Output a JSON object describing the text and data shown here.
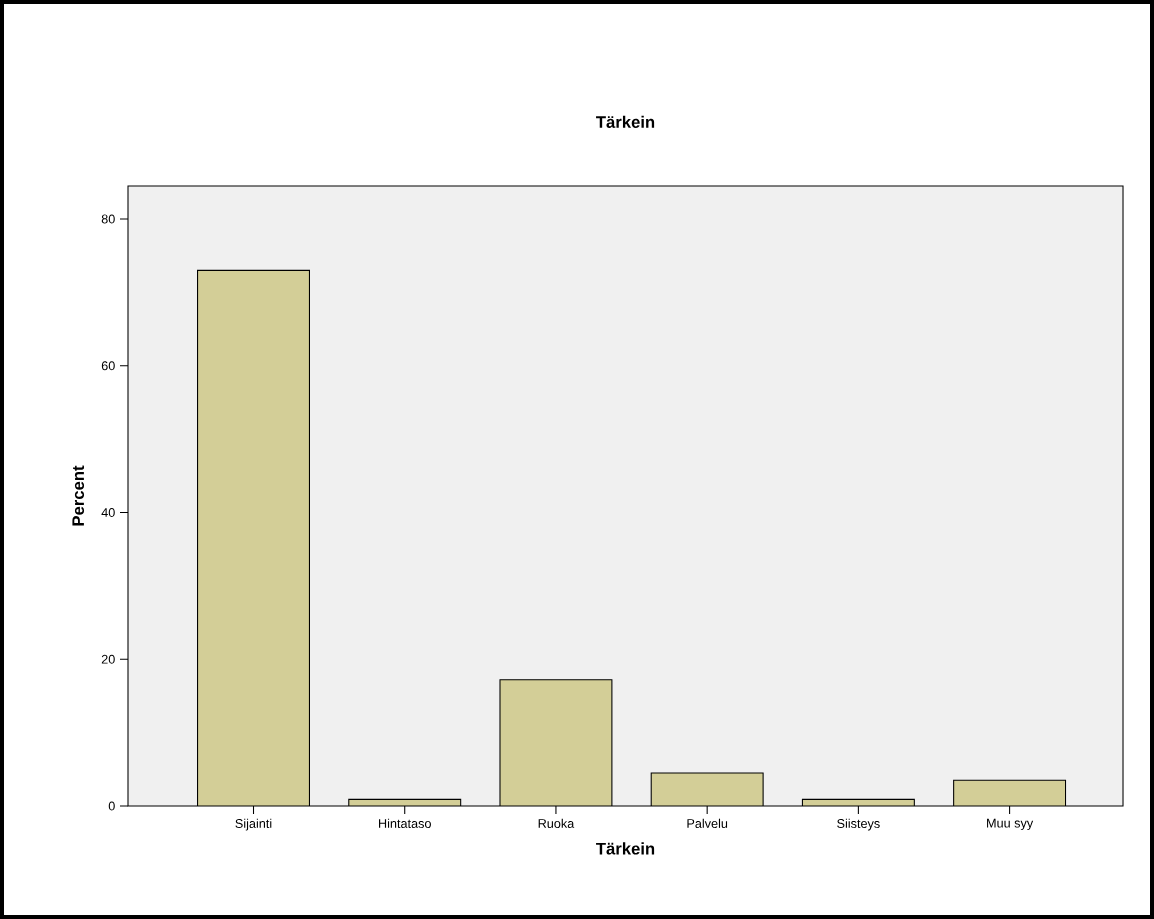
{
  "chart_data": {
    "type": "bar",
    "title": "Tärkein",
    "xlabel": "Tärkein",
    "ylabel": "Percent",
    "categories": [
      "Sijainti",
      "Hintataso",
      "Ruoka",
      "Palvelu",
      "Siisteys",
      "Muu syy"
    ],
    "values": [
      73,
      0.9,
      17.2,
      4.5,
      0.9,
      3.5
    ],
    "color": "#d3ce97",
    "ylim": [
      0,
      84.5
    ],
    "yticks": [
      0,
      20,
      40,
      60,
      80
    ],
    "grid": false
  }
}
